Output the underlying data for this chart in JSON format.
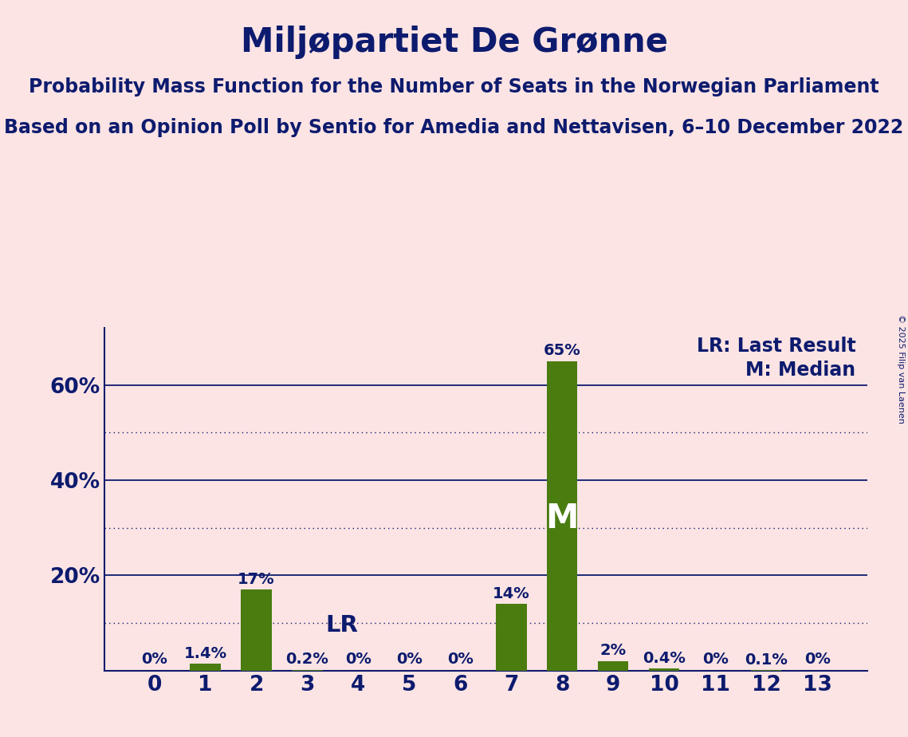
{
  "title": "Miljøpartiet De Grønne",
  "subtitle1": "Probability Mass Function for the Number of Seats in the Norwegian Parliament",
  "subtitle2": "Based on an Opinion Poll by Sentio for Amedia and Nettavisen, 6–10 December 2022",
  "copyright": "© 2025 Filip van Laenen",
  "categories": [
    0,
    1,
    2,
    3,
    4,
    5,
    6,
    7,
    8,
    9,
    10,
    11,
    12,
    13
  ],
  "values": [
    0.0,
    1.4,
    17.0,
    0.2,
    0.0,
    0.0,
    0.0,
    14.0,
    65.0,
    2.0,
    0.4,
    0.0,
    0.1,
    0.0
  ],
  "bar_color": "#4a7c10",
  "background_color": "#fce4e4",
  "title_color": "#0d1b6e",
  "axis_color": "#0d1b6e",
  "bar_labels": [
    "0%",
    "1.4%",
    "17%",
    "0.2%",
    "0%",
    "0%",
    "0%",
    "14%",
    "65%",
    "2%",
    "0.4%",
    "0%",
    "0.1%",
    "0%"
  ],
  "lr_bar": 3,
  "median_bar": 8,
  "ylim": [
    0,
    72
  ],
  "yticks": [
    0,
    20,
    40,
    60
  ],
  "ytick_labels": [
    "",
    "20%",
    "40%",
    "60%"
  ],
  "solid_gridlines": [
    20,
    40,
    60
  ],
  "dotted_gridlines": [
    10,
    30,
    50
  ],
  "legend_lr": "LR: Last Result",
  "legend_m": "M: Median",
  "title_fontsize": 30,
  "subtitle_fontsize": 17,
  "label_fontsize": 14,
  "tick_fontsize": 19,
  "lr_fontsize": 21,
  "m_fontsize": 30,
  "legend_fontsize": 17,
  "copyright_fontsize": 8
}
